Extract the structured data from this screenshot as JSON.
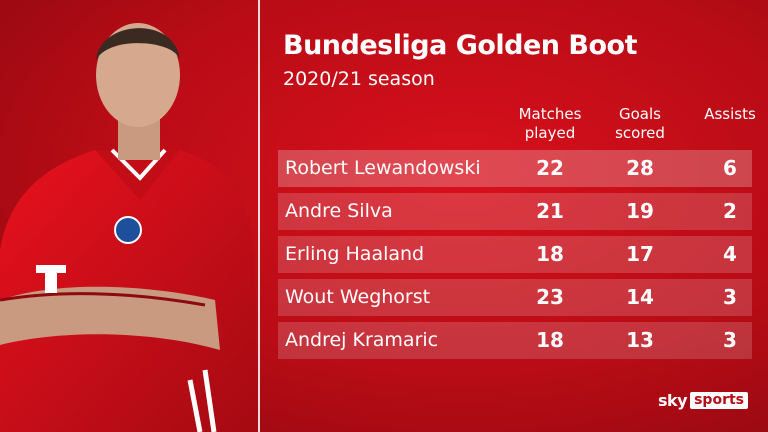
{
  "header": {
    "title": "Bundesliga Golden Boot",
    "subtitle": "2020/21 season"
  },
  "table": {
    "columns": [
      "Matches played",
      "Goals scored",
      "Assists"
    ],
    "rows": [
      [
        "Robert Lewandowski",
        22,
        28,
        6
      ],
      [
        "Andre Silva",
        21,
        19,
        2
      ],
      [
        "Erling Haaland",
        18,
        17,
        4
      ],
      [
        "Wout Weghorst",
        23,
        14,
        3
      ],
      [
        "Andrej Kramaric",
        18,
        13,
        3
      ]
    ]
  },
  "logo": {
    "brand": "sky",
    "product": "sports"
  }
}
